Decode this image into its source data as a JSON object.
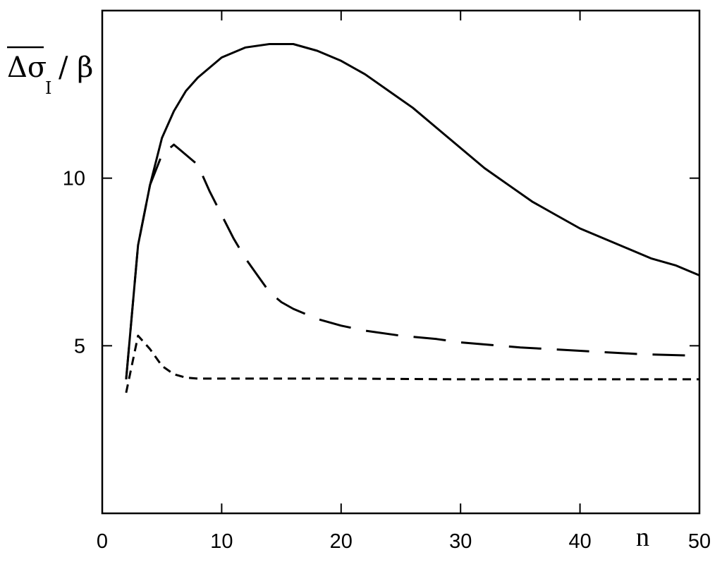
{
  "chart_data": {
    "type": "line",
    "title": "",
    "xlabel": "n",
    "ylabel": {
      "main": "Δσ",
      "subscript": "I",
      "suffix": "/ β",
      "overline": true
    },
    "xlim": [
      0,
      50
    ],
    "ylim": [
      0,
      15
    ],
    "x_ticks": [
      0,
      10,
      20,
      30,
      40,
      50
    ],
    "x_tick_labels": [
      "0",
      "10",
      "20",
      "30",
      "40",
      "50"
    ],
    "y_ticks": [
      5,
      10
    ],
    "y_tick_labels": [
      "5",
      "10"
    ],
    "grid": false,
    "legend": "none",
    "series": [
      {
        "style": "solid",
        "x": [
          2,
          3,
          4,
          5,
          6,
          7,
          8,
          10,
          12,
          14,
          16,
          18,
          20,
          22,
          24,
          26,
          28,
          30,
          32,
          34,
          36,
          38,
          40,
          42,
          44,
          46,
          48,
          50
        ],
        "y": [
          4.0,
          8.0,
          9.8,
          11.2,
          12.0,
          12.6,
          13.0,
          13.6,
          13.9,
          14.0,
          14.0,
          13.8,
          13.5,
          13.1,
          12.6,
          12.1,
          11.5,
          10.9,
          10.3,
          9.8,
          9.3,
          8.9,
          8.5,
          8.2,
          7.9,
          7.6,
          7.4,
          7.1
        ]
      },
      {
        "style": "long-dash",
        "x": [
          2,
          3,
          4,
          5,
          6,
          8,
          9,
          10,
          11,
          12,
          13,
          14,
          15,
          16,
          18,
          20,
          22,
          25,
          28,
          30,
          35,
          40,
          45,
          50
        ],
        "y": [
          4.0,
          8.0,
          9.8,
          10.7,
          11.0,
          10.4,
          9.6,
          8.9,
          8.2,
          7.6,
          7.1,
          6.6,
          6.3,
          6.1,
          5.8,
          5.6,
          5.45,
          5.3,
          5.2,
          5.1,
          4.95,
          4.85,
          4.75,
          4.7
        ]
      },
      {
        "style": "short-dash",
        "x": [
          2,
          3,
          4,
          5,
          6,
          7,
          8,
          10,
          15,
          20,
          30,
          40,
          50
        ],
        "y": [
          3.6,
          5.3,
          4.9,
          4.4,
          4.15,
          4.05,
          4.02,
          4.02,
          4.02,
          4.02,
          4.0,
          4.0,
          4.0
        ]
      }
    ]
  }
}
